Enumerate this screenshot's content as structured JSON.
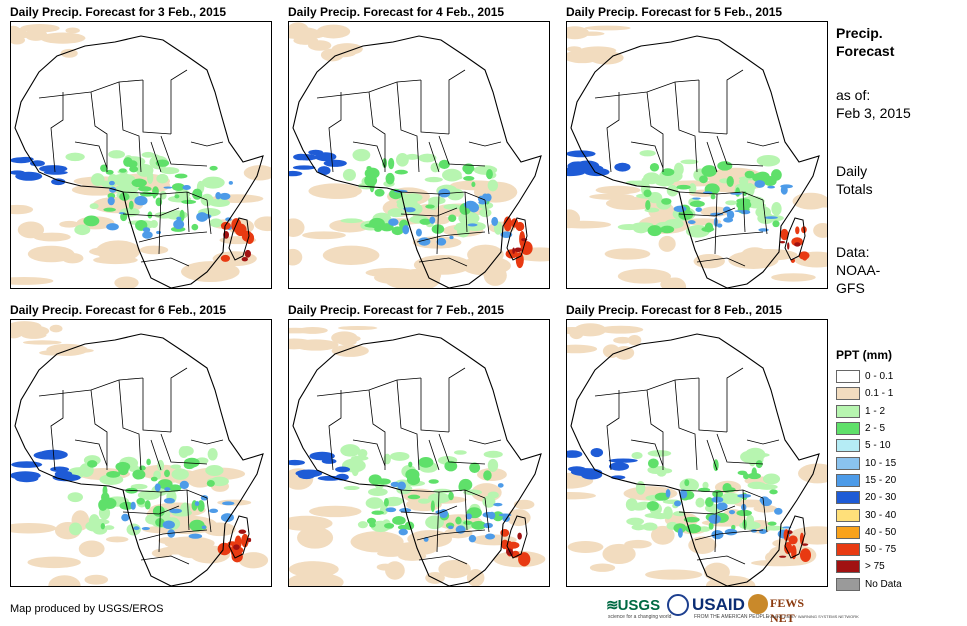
{
  "panels": [
    {
      "title": "Daily Precip. Forecast for 3 Feb., 2015",
      "day": 3
    },
    {
      "title": "Daily Precip. Forecast for 4 Feb., 2015",
      "day": 4
    },
    {
      "title": "Daily Precip. Forecast for 5 Feb., 2015",
      "day": 5
    },
    {
      "title": "Daily Precip. Forecast for 6 Feb., 2015",
      "day": 6
    },
    {
      "title": "Daily Precip. Forecast for 7 Feb., 2015",
      "day": 7
    },
    {
      "title": "Daily Precip. Forecast for 8 Feb., 2015",
      "day": 8
    }
  ],
  "sidebar": {
    "heading_line1": "Precip.",
    "heading_line2": "Forecast",
    "asof_label": "as of:",
    "asof_date": "Feb 3, 2015",
    "totals_line1": "Daily",
    "totals_line2": "Totals",
    "data_label": "Data:",
    "data_line1": "NOAA-",
    "data_line2": "GFS"
  },
  "legend": {
    "title": "PPT (mm)",
    "items": [
      {
        "label": "0 - 0.1",
        "color": "#ffffff"
      },
      {
        "label": "0.1 - 1",
        "color": "#f2dcbf"
      },
      {
        "label": "1 - 2",
        "color": "#b7f5b0"
      },
      {
        "label": "2 - 5",
        "color": "#5fe06a"
      },
      {
        "label": "5 - 10",
        "color": "#b5ecf5"
      },
      {
        "label": "10 - 15",
        "color": "#8ac3ef"
      },
      {
        "label": "15 - 20",
        "color": "#4d9be8"
      },
      {
        "label": "20 - 30",
        "color": "#1e5bd6"
      },
      {
        "label": "30 - 40",
        "color": "#ffe07a"
      },
      {
        "label": "40 - 50",
        "color": "#f9a21b"
      },
      {
        "label": "50 - 75",
        "color": "#e83a12"
      },
      {
        "label": "> 75",
        "color": "#a11212"
      },
      {
        "label": "No Data",
        "color": "#9a9a9a"
      }
    ]
  },
  "footer": {
    "credit": "Map produced by USGS/EROS",
    "logo_usgs": "USGS",
    "logo_usgs_sub": "science for a changing world",
    "logo_usaid": "USAID",
    "logo_usaid_sub": "FROM THE AMERICAN PEOPLE",
    "logo_fews": "FEWS NET",
    "logo_fews_sub": "FAMINE EARLY WARNING SYSTEMS NETWORK"
  }
}
